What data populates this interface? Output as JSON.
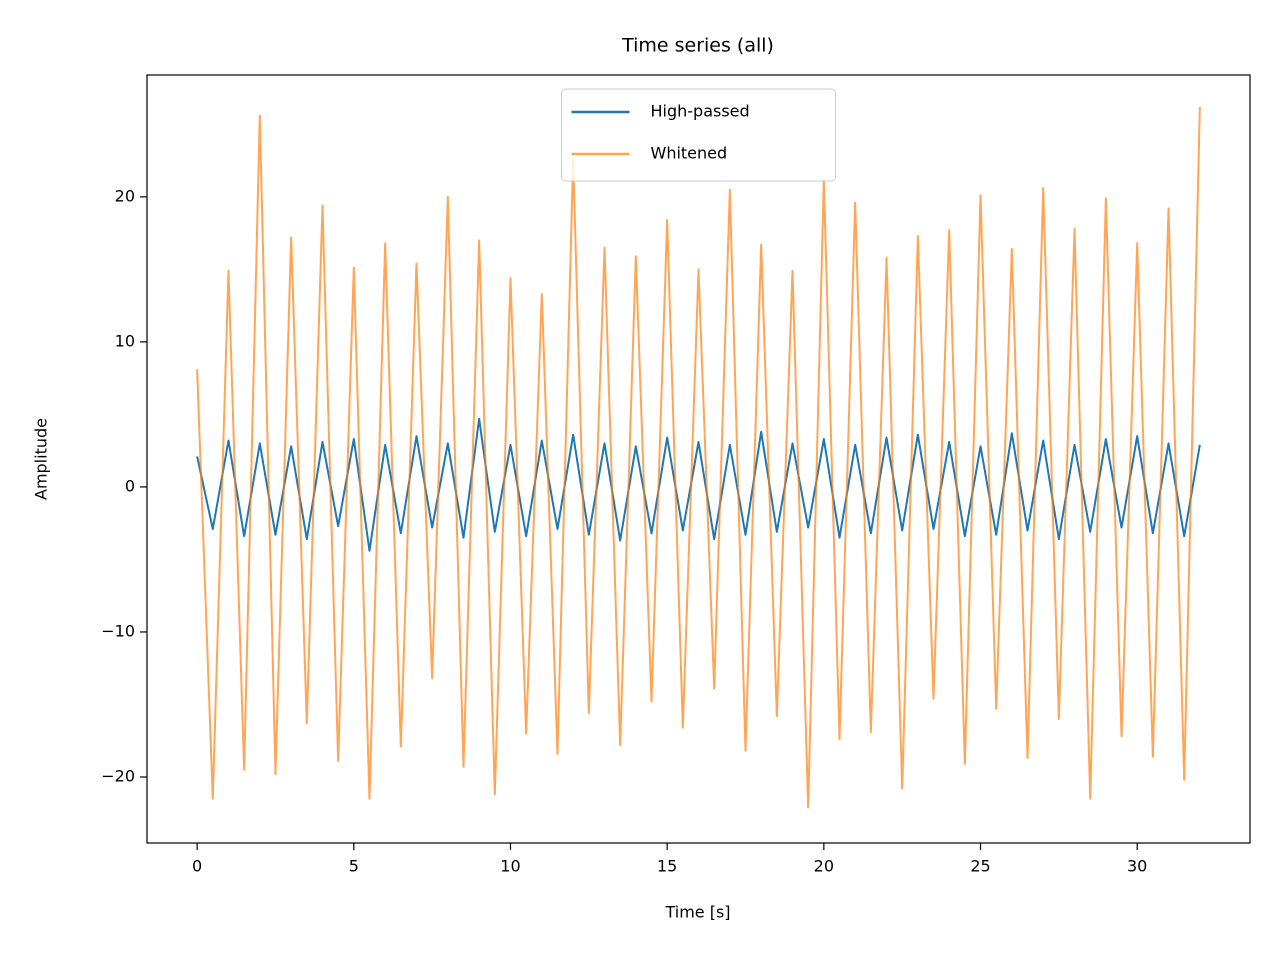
{
  "chart_data": {
    "type": "line",
    "title": "Time series (all)",
    "xlabel": "Time [s]",
    "ylabel": "Amplitude",
    "x": [
      0,
      0.5,
      1,
      1.5,
      2,
      2.5,
      3,
      3.5,
      4,
      4.5,
      5,
      5.5,
      6,
      6.5,
      7,
      7.5,
      8,
      8.5,
      9,
      9.5,
      10,
      10.5,
      11,
      11.5,
      12,
      12.5,
      13,
      13.5,
      14,
      14.5,
      15,
      15.5,
      16,
      16.5,
      17,
      17.5,
      18,
      18.5,
      19,
      19.5,
      20,
      20.5,
      21,
      21.5,
      22,
      22.5,
      23,
      23.5,
      24,
      24.5,
      25,
      25.5,
      26,
      26.5,
      27,
      27.5,
      28,
      28.5,
      29,
      29.5,
      30,
      30.5,
      31,
      31.5,
      32
    ],
    "series": [
      {
        "name": "High-passed",
        "color": "#1f77b4",
        "values": [
          2.1,
          -2.9,
          3.2,
          -3.4,
          3.0,
          -3.3,
          2.8,
          -3.6,
          3.1,
          -2.7,
          3.3,
          -4.4,
          2.9,
          -3.2,
          3.5,
          -2.8,
          3.0,
          -3.5,
          4.7,
          -3.1,
          2.9,
          -3.4,
          3.2,
          -2.9,
          3.6,
          -3.3,
          3.0,
          -3.7,
          2.8,
          -3.2,
          3.4,
          -3.0,
          3.1,
          -3.6,
          2.9,
          -3.3,
          3.8,
          -3.1,
          3.0,
          -2.8,
          3.3,
          -3.5,
          2.9,
          -3.2,
          3.4,
          -3.0,
          3.6,
          -2.9,
          3.1,
          -3.4,
          2.8,
          -3.3,
          3.7,
          -3.0,
          3.2,
          -3.6,
          2.9,
          -3.1,
          3.3,
          -2.8,
          3.5,
          -3.2,
          3.0,
          -3.4,
          2.9
        ]
      },
      {
        "name": "Whitened",
        "color": "#ff7f0e",
        "values": [
          8.1,
          -21.5,
          14.9,
          -19.5,
          25.6,
          -19.8,
          17.2,
          -16.3,
          19.4,
          -18.9,
          15.1,
          -21.5,
          16.8,
          -17.9,
          15.4,
          -13.2,
          20.0,
          -19.3,
          17.0,
          -21.2,
          14.4,
          -17.0,
          13.3,
          -18.4,
          22.6,
          -15.6,
          16.5,
          -17.8,
          15.9,
          -14.8,
          18.4,
          -16.6,
          15.0,
          -13.9,
          20.5,
          -18.2,
          16.7,
          -15.8,
          14.9,
          -22.1,
          21.2,
          -17.4,
          19.6,
          -16.9,
          15.8,
          -20.8,
          17.3,
          -14.6,
          17.7,
          -19.1,
          20.1,
          -15.3,
          16.4,
          -18.7,
          20.6,
          -16.0,
          17.8,
          -21.5,
          19.9,
          -17.2,
          16.8,
          -18.6,
          19.2,
          -20.2,
          26.2
        ]
      }
    ],
    "xlim": [
      -1.6,
      33.6
    ],
    "ylim": [
      -24.55,
      28.4
    ],
    "xticks": [
      0,
      5,
      10,
      15,
      20,
      25,
      30
    ],
    "yticks": [
      {
        "value": -20,
        "label": "−20"
      },
      {
        "value": -10,
        "label": "−10"
      },
      0,
      10,
      20
    ],
    "legend": "upper center",
    "line_opacity": [
      1,
      0.7
    ]
  }
}
